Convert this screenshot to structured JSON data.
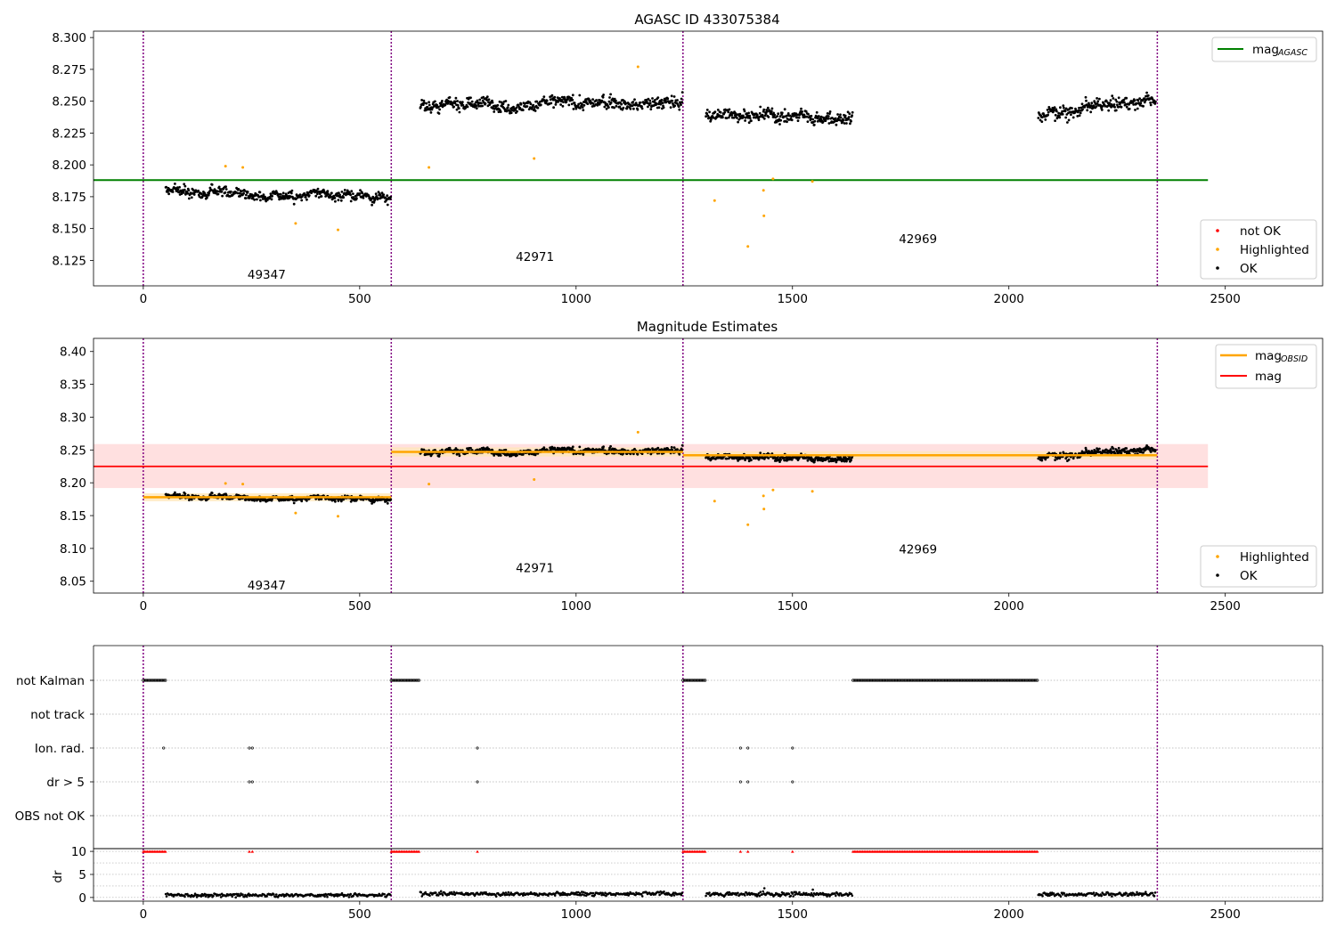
{
  "chart_data": [
    {
      "panel": "top",
      "type": "scatter",
      "title": "AGASC ID 433075384",
      "xlim": [
        -115,
        2725
      ],
      "ylim": [
        8.105,
        8.305
      ],
      "x_ticks": [
        0,
        500,
        1000,
        1500,
        2000,
        2500
      ],
      "y_ticks": [
        8.125,
        8.15,
        8.175,
        8.2,
        8.225,
        8.25,
        8.275,
        8.3
      ],
      "y_tick_labels": [
        "8.125",
        "8.150",
        "8.175",
        "8.200",
        "8.225",
        "8.250",
        "8.275",
        "8.300"
      ],
      "obs_boundaries": [
        0,
        573,
        1247,
        2343
      ],
      "obs_labels": [
        {
          "text": "49347",
          "x": 285,
          "y": 8.114
        },
        {
          "text": "42971",
          "x": 905,
          "y": 8.128
        },
        {
          "text": "42969",
          "x": 1790,
          "y": 8.142
        }
      ],
      "mag_agasc": {
        "value": 8.188,
        "x_range": [
          -115,
          2460
        ]
      },
      "ok_segments": [
        {
          "x_start": 52,
          "x_end": 573,
          "y_start": 8.181,
          "y_end": 8.174,
          "noise": 0.006
        },
        {
          "x_start": 640,
          "x_end": 1247,
          "y_start": 8.247,
          "y_end": 8.249,
          "noise": 0.008
        },
        {
          "x_start": 1300,
          "x_end": 1640,
          "y_start": 8.24,
          "y_end": 8.237,
          "noise": 0.008
        },
        {
          "x_start": 2068,
          "x_end": 2340,
          "y_start": 8.24,
          "y_end": 8.252,
          "noise": 0.008
        }
      ],
      "highlighted_points": [
        {
          "x": 190,
          "y": 8.199
        },
        {
          "x": 230,
          "y": 8.198
        },
        {
          "x": 352,
          "y": 8.154
        },
        {
          "x": 450,
          "y": 8.149
        },
        {
          "x": 660,
          "y": 8.198
        },
        {
          "x": 903,
          "y": 8.205
        },
        {
          "x": 1143,
          "y": 8.277
        },
        {
          "x": 1320,
          "y": 8.172
        },
        {
          "x": 1397,
          "y": 8.136
        },
        {
          "x": 1433,
          "y": 8.18
        },
        {
          "x": 1434,
          "y": 8.16
        },
        {
          "x": 1455,
          "y": 8.189
        },
        {
          "x": 1546,
          "y": 8.187
        }
      ],
      "not_ok_points": [],
      "legend_upper": [
        {
          "label_main": "mag",
          "label_sub": "AGASC",
          "color": "#008000"
        }
      ],
      "legend_lower": [
        {
          "label": "not OK",
          "color": "#ff0000"
        },
        {
          "label": "Highlighted",
          "color": "#ffa500"
        },
        {
          "label": "OK",
          "color": "#000000"
        }
      ]
    },
    {
      "panel": "middle",
      "type": "scatter",
      "title": "Magnitude Estimates",
      "xlim": [
        -115,
        2725
      ],
      "ylim": [
        8.032,
        8.42
      ],
      "x_ticks": [
        0,
        500,
        1000,
        1500,
        2000,
        2500
      ],
      "y_ticks": [
        8.05,
        8.1,
        8.15,
        8.2,
        8.25,
        8.3,
        8.35,
        8.4
      ],
      "y_tick_labels": [
        "8.05",
        "8.10",
        "8.15",
        "8.20",
        "8.25",
        "8.30",
        "8.35",
        "8.40"
      ],
      "obs_boundaries": [
        0,
        573,
        1247,
        2343
      ],
      "obs_labels": [
        {
          "text": "49347",
          "x": 285,
          "y": 8.044
        },
        {
          "text": "42971",
          "x": 905,
          "y": 8.071
        },
        {
          "text": "42969",
          "x": 1790,
          "y": 8.099
        }
      ],
      "mag": {
        "value": 8.225,
        "band": [
          8.192,
          8.259
        ],
        "x_range": [
          -115,
          2460
        ]
      },
      "mag_obsid": [
        {
          "x_start": 0,
          "x_end": 573,
          "value": 8.178,
          "band": [
            8.172,
            8.184
          ]
        },
        {
          "x_start": 573,
          "x_end": 1247,
          "value": 8.247,
          "band": [
            8.24,
            8.254
          ]
        },
        {
          "x_start": 1247,
          "x_end": 2343,
          "value": 8.242,
          "band": [
            8.236,
            8.248
          ]
        }
      ],
      "ok_segments": [
        {
          "x_start": 52,
          "x_end": 573,
          "y_start": 8.181,
          "y_end": 8.174,
          "noise": 0.006
        },
        {
          "x_start": 640,
          "x_end": 1247,
          "y_start": 8.247,
          "y_end": 8.249,
          "noise": 0.008
        },
        {
          "x_start": 1300,
          "x_end": 1640,
          "y_start": 8.24,
          "y_end": 8.237,
          "noise": 0.008
        },
        {
          "x_start": 2068,
          "x_end": 2340,
          "y_start": 8.24,
          "y_end": 8.252,
          "noise": 0.008
        }
      ],
      "highlighted_points": [
        {
          "x": 190,
          "y": 8.199
        },
        {
          "x": 230,
          "y": 8.198
        },
        {
          "x": 352,
          "y": 8.154
        },
        {
          "x": 450,
          "y": 8.149
        },
        {
          "x": 660,
          "y": 8.198
        },
        {
          "x": 903,
          "y": 8.205
        },
        {
          "x": 1143,
          "y": 8.277
        },
        {
          "x": 1320,
          "y": 8.172
        },
        {
          "x": 1397,
          "y": 8.136
        },
        {
          "x": 1433,
          "y": 8.18
        },
        {
          "x": 1434,
          "y": 8.16
        },
        {
          "x": 1455,
          "y": 8.189
        },
        {
          "x": 1546,
          "y": 8.187
        }
      ],
      "legend_upper": [
        {
          "label_main": "mag",
          "label_sub": "OBSID",
          "color": "#ffa500"
        },
        {
          "label_main": "mag",
          "label_sub": "",
          "color": "#ff0000"
        }
      ],
      "legend_lower": [
        {
          "label": "Highlighted",
          "color": "#ffa500"
        },
        {
          "label": "OK",
          "color": "#000000"
        }
      ]
    },
    {
      "panel": "flags",
      "type": "scatter",
      "xlim": [
        -115,
        2725
      ],
      "categories": [
        "not Kalman",
        "not track",
        "Ion. rad.",
        "dr > 5",
        "OBS not OK"
      ],
      "obs_boundaries": [
        0,
        573,
        1247,
        2343
      ],
      "flag_runs": [
        {
          "row": 0,
          "x_start": 0,
          "x_end": 52
        },
        {
          "row": 0,
          "x_start": 573,
          "x_end": 640
        },
        {
          "row": 0,
          "x_start": 1247,
          "x_end": 1300
        },
        {
          "row": 0,
          "x_start": 1640,
          "x_end": 2068
        }
      ],
      "flag_points": [
        {
          "row": 2,
          "x": 47
        },
        {
          "row": 2,
          "x": 245
        },
        {
          "row": 2,
          "x": 252
        },
        {
          "row": 2,
          "x": 772
        },
        {
          "row": 2,
          "x": 1380
        },
        {
          "row": 2,
          "x": 1397
        },
        {
          "row": 2,
          "x": 1500
        },
        {
          "row": 3,
          "x": 245
        },
        {
          "row": 3,
          "x": 252
        },
        {
          "row": 3,
          "x": 772
        },
        {
          "row": 3,
          "x": 1380
        },
        {
          "row": 3,
          "x": 1397
        },
        {
          "row": 3,
          "x": 1500
        }
      ]
    },
    {
      "panel": "dr",
      "type": "scatter",
      "xlim": [
        -115,
        2725
      ],
      "ylim": [
        -0.8,
        10.6
      ],
      "ylabel": "dr",
      "x_ticks": [
        0,
        500,
        1000,
        1500,
        2000,
        2500
      ],
      "y_ticks": [
        0,
        5,
        10
      ],
      "y_tick_labels": [
        "0",
        "5",
        "10"
      ],
      "obs_boundaries": [
        0,
        573,
        1247,
        2343
      ],
      "capped_value": 10,
      "capped_runs": [
        {
          "x_start": 0,
          "x_end": 52
        },
        {
          "x_start": 573,
          "x_end": 640
        },
        {
          "x_start": 1247,
          "x_end": 1300
        },
        {
          "x_start": 1640,
          "x_end": 2068
        }
      ],
      "capped_points": [
        245,
        252,
        772,
        1380,
        1397,
        1500
      ],
      "dr_segments": [
        {
          "x_start": 52,
          "x_end": 573,
          "mean": 0.5,
          "noise": 0.35
        },
        {
          "x_start": 640,
          "x_end": 1247,
          "mean": 0.8,
          "noise": 0.4
        },
        {
          "x_start": 1300,
          "x_end": 1640,
          "mean": 0.7,
          "noise": 0.4
        },
        {
          "x_start": 2068,
          "x_end": 2340,
          "mean": 0.7,
          "noise": 0.4
        }
      ],
      "dr_outliers": [
        {
          "x": 1435,
          "y": 2.0
        },
        {
          "x": 1547,
          "y": 1.7
        }
      ]
    }
  ],
  "colors": {
    "ok": "#000000",
    "highlighted": "#ffa500",
    "not_ok": "#ff0000",
    "mag_agasc": "#008000",
    "mag": "#ff0000",
    "mag_band": "#ffe0e0",
    "mag_obsid": "#ffa500",
    "mag_obsid_band": "#ffe6b8",
    "obs_boundary": "#800080",
    "grid": "#b0b0b0"
  }
}
